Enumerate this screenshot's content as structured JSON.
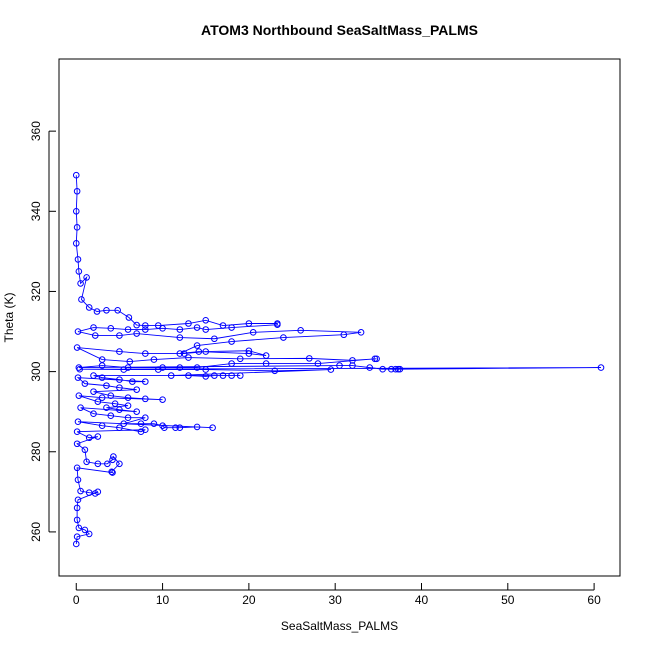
{
  "chart_data": {
    "type": "scatter",
    "title": "ATOM3 Northbound SeaSaltMass_PALMS",
    "xlabel": "SeaSaltMass_PALMS",
    "ylabel": "Theta (K)",
    "xlim": [
      -2,
      63
    ],
    "ylim": [
      249,
      378
    ],
    "x_ticks": [
      0,
      10,
      20,
      30,
      40,
      50,
      60
    ],
    "y_ticks": [
      260,
      280,
      300,
      320,
      340,
      360
    ],
    "grid": false,
    "connected": true,
    "marker": "open-circle",
    "color": "#0000FF",
    "series": [
      {
        "points": [
          [
            0,
            349
          ],
          [
            0.1,
            345
          ],
          [
            0,
            340
          ],
          [
            0.1,
            336
          ],
          [
            0,
            332
          ],
          [
            0.2,
            328
          ],
          [
            0.3,
            325
          ],
          [
            0.5,
            322
          ],
          [
            1.2,
            323.5
          ],
          [
            0.6,
            318
          ],
          [
            1.5,
            316
          ],
          [
            2.4,
            315
          ],
          [
            3.5,
            315.3
          ],
          [
            4.8,
            315.3
          ],
          [
            6.1,
            313.5
          ],
          [
            7.0,
            311.6
          ],
          [
            8.0,
            311.5
          ],
          [
            9.5,
            311.5
          ],
          [
            13,
            312
          ],
          [
            15,
            312.8
          ],
          [
            17,
            311.5
          ],
          [
            20,
            312
          ],
          [
            23.3,
            312
          ],
          [
            23.3,
            311.7
          ],
          [
            18,
            311
          ],
          [
            15,
            310.5
          ],
          [
            14,
            311
          ],
          [
            12,
            310.5
          ],
          [
            10,
            310.8
          ],
          [
            8,
            310.5
          ],
          [
            6,
            310.5
          ],
          [
            4,
            310.8
          ],
          [
            2,
            311
          ],
          [
            0.2,
            310
          ],
          [
            2.2,
            309
          ],
          [
            5.0,
            309
          ],
          [
            7.0,
            309.5
          ],
          [
            12,
            308.5
          ],
          [
            16,
            308.2
          ],
          [
            20.5,
            309.8
          ],
          [
            26,
            310.3
          ],
          [
            33,
            309.8
          ],
          [
            31,
            309.2
          ],
          [
            24,
            308.5
          ],
          [
            18,
            307.5
          ],
          [
            14,
            306.5
          ],
          [
            12,
            304.5
          ],
          [
            14.2,
            305
          ],
          [
            20,
            304.5
          ],
          [
            22,
            304
          ],
          [
            20,
            305.2
          ],
          [
            15,
            305
          ],
          [
            12.5,
            304.5
          ],
          [
            8,
            304.5
          ],
          [
            5,
            305
          ],
          [
            0.1,
            306
          ],
          [
            3.0,
            303
          ],
          [
            6.2,
            302.5
          ],
          [
            9,
            303
          ],
          [
            13,
            303.5
          ],
          [
            19,
            303.2
          ],
          [
            27,
            303.3
          ],
          [
            32,
            302.8
          ],
          [
            34.8,
            303.2
          ],
          [
            34.6,
            303.2
          ],
          [
            28,
            302
          ],
          [
            22,
            302
          ],
          [
            18,
            302
          ],
          [
            14,
            301
          ],
          [
            12,
            301
          ],
          [
            10,
            301
          ],
          [
            6,
            301
          ],
          [
            3,
            301.5
          ],
          [
            0.3,
            301
          ],
          [
            30.5,
            301.5
          ],
          [
            32,
            301.5
          ],
          [
            34,
            301
          ],
          [
            35.5,
            300.6
          ],
          [
            36.5,
            300.6
          ],
          [
            37.0,
            300.6
          ],
          [
            37.3,
            300.6
          ],
          [
            37.5,
            300.6
          ],
          [
            60.8,
            301
          ],
          [
            0.4,
            300.6
          ],
          [
            5.5,
            300.5
          ],
          [
            9.5,
            300.5
          ],
          [
            15,
            300.5
          ],
          [
            23,
            300.2
          ],
          [
            29.5,
            300.5
          ],
          [
            11,
            299
          ],
          [
            13,
            299
          ],
          [
            15,
            298.8
          ],
          [
            16,
            299
          ],
          [
            17,
            299
          ],
          [
            18,
            299
          ],
          [
            19,
            299
          ],
          [
            2,
            299
          ],
          [
            3,
            298.5
          ],
          [
            5,
            298
          ],
          [
            6.5,
            297.5
          ],
          [
            8,
            297.5
          ],
          [
            0.2,
            298.5
          ],
          [
            1,
            297
          ],
          [
            3.5,
            296.5
          ],
          [
            5,
            296
          ],
          [
            7,
            295.5
          ],
          [
            2,
            295
          ],
          [
            4,
            294
          ],
          [
            6,
            293.5
          ],
          [
            8,
            293.2
          ],
          [
            10,
            293
          ],
          [
            3,
            293.5
          ],
          [
            0.3,
            294
          ],
          [
            2.5,
            292.5
          ],
          [
            4.5,
            292
          ],
          [
            6,
            291.5
          ],
          [
            3.5,
            291
          ],
          [
            5,
            290.5
          ],
          [
            7,
            290
          ],
          [
            0.5,
            291
          ],
          [
            2,
            289.5
          ],
          [
            4,
            289
          ],
          [
            6,
            288.5
          ],
          [
            8,
            288.5
          ],
          [
            5.5,
            287
          ],
          [
            7.5,
            287
          ],
          [
            9,
            287
          ],
          [
            10,
            286.5
          ],
          [
            10.2,
            286
          ],
          [
            11.5,
            286
          ],
          [
            12,
            286
          ],
          [
            14,
            286.2
          ],
          [
            15.8,
            286
          ],
          [
            0.2,
            287.5
          ],
          [
            3,
            286.5
          ],
          [
            5,
            286
          ],
          [
            7.5,
            285
          ],
          [
            8,
            285.5
          ],
          [
            0.1,
            285
          ],
          [
            1.5,
            283.5
          ],
          [
            2.5,
            283.8
          ],
          [
            0.1,
            282
          ],
          [
            1,
            280.5
          ],
          [
            1.2,
            277.5
          ],
          [
            2.5,
            277
          ],
          [
            3.6,
            277
          ],
          [
            4.2,
            278
          ],
          [
            4.3,
            278.8
          ],
          [
            5,
            277
          ],
          [
            4.1,
            275
          ],
          [
            4.2,
            274.8
          ],
          [
            0.1,
            276
          ],
          [
            0.2,
            273
          ],
          [
            0.5,
            270.2
          ],
          [
            1.5,
            269.8
          ],
          [
            2.2,
            269.6
          ],
          [
            2.5,
            270
          ],
          [
            0.2,
            268
          ],
          [
            0.1,
            266
          ],
          [
            0.1,
            263
          ],
          [
            0.3,
            261
          ],
          [
            1,
            260.5
          ],
          [
            1.5,
            259.5
          ],
          [
            0.1,
            258.8
          ],
          [
            0,
            257
          ]
        ]
      }
    ]
  }
}
